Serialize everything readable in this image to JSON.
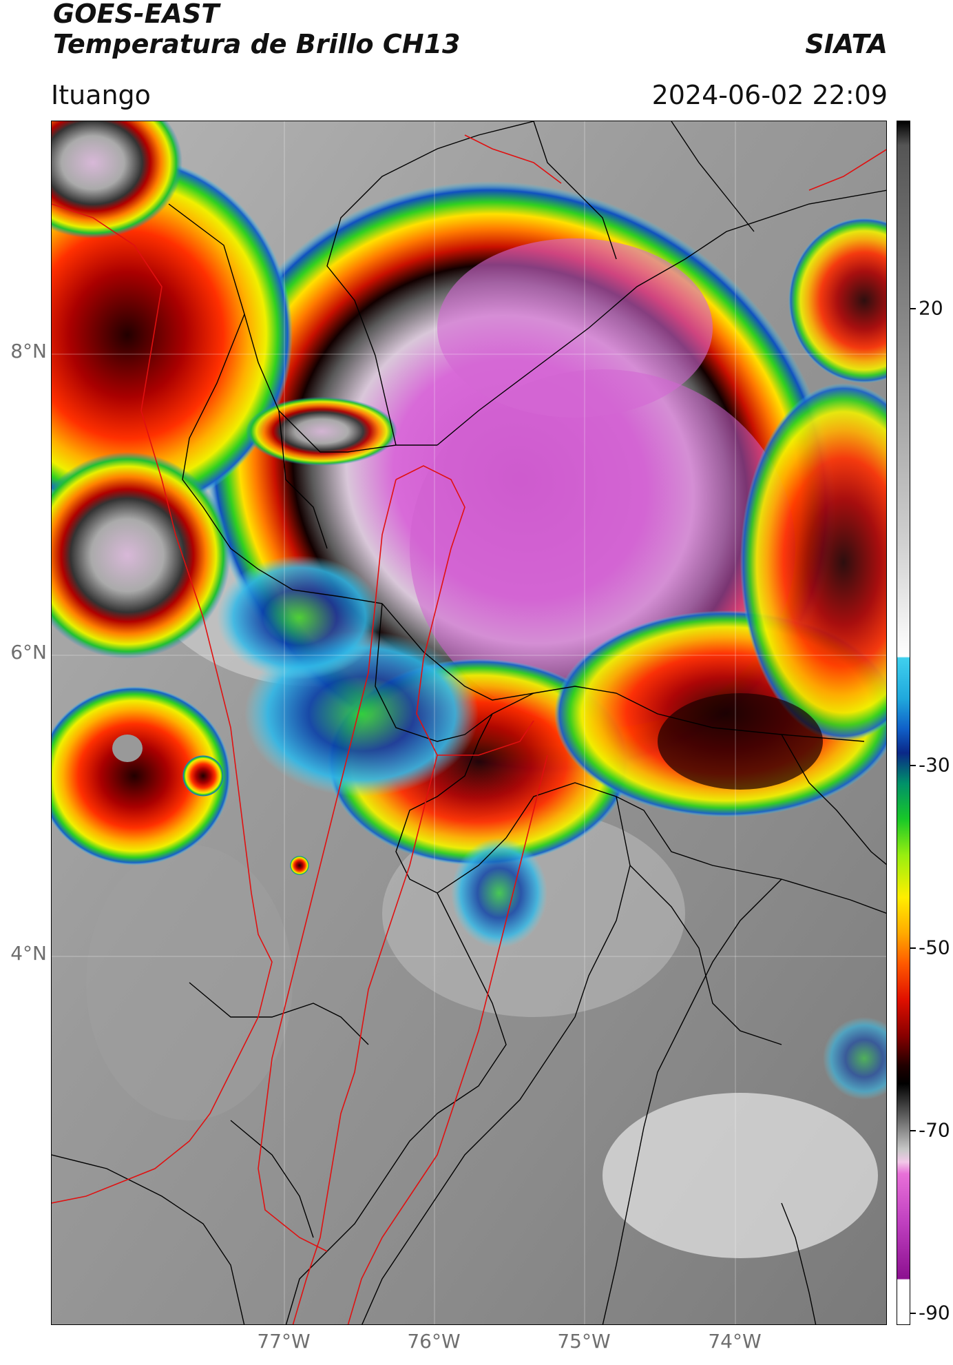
{
  "header": {
    "satellite": "GOES-EAST",
    "product": "Temperatura de Brillo CH13",
    "organization": "SIATA",
    "location": "Ituango",
    "timestamp": "2024-06-02 22:09"
  },
  "axes": {
    "lat_labels": [
      "8°N",
      "6°N",
      "4°N"
    ],
    "lon_labels": [
      "77°W",
      "76°W",
      "75°W",
      "74°W"
    ]
  },
  "colorbar": {
    "tick_labels": [
      "20",
      "-30",
      "-50",
      "-70",
      "-90"
    ],
    "range": [
      -90,
      30
    ]
  }
}
